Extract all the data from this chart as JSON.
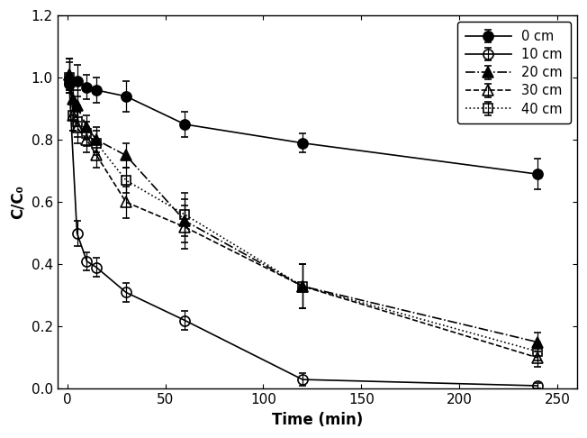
{
  "title": "",
  "xlabel": "Time (min)",
  "ylabel": "C/C₀",
  "xlim": [
    -5,
    260
  ],
  "ylim": [
    0,
    1.2
  ],
  "xticks": [
    0,
    50,
    100,
    150,
    200,
    250
  ],
  "yticks": [
    0.0,
    0.2,
    0.4,
    0.6,
    0.8,
    1.0,
    1.2
  ],
  "series": [
    {
      "label": "0 cm",
      "x": [
        1,
        5,
        10,
        15,
        30,
        60,
        120,
        240
      ],
      "y": [
        0.98,
        0.99,
        0.97,
        0.96,
        0.94,
        0.85,
        0.79,
        0.69
      ],
      "yerr": [
        0.03,
        0.05,
        0.04,
        0.04,
        0.05,
        0.04,
        0.03,
        0.05
      ],
      "color": "black",
      "marker": "o",
      "fillstyle": "full",
      "linestyle": "-",
      "markersize": 8,
      "linewidth": 1.2
    },
    {
      "label": "10 cm",
      "x": [
        1,
        5,
        10,
        15,
        30,
        60,
        120,
        240
      ],
      "y": [
        0.98,
        0.5,
        0.41,
        0.39,
        0.31,
        0.22,
        0.03,
        0.01
      ],
      "yerr": [
        0.03,
        0.04,
        0.03,
        0.03,
        0.03,
        0.03,
        0.02,
        0.01
      ],
      "color": "black",
      "marker": "o",
      "fillstyle": "none",
      "linestyle": "-",
      "markersize": 8,
      "linewidth": 1.2
    },
    {
      "label": "20 cm",
      "x": [
        1,
        3,
        5,
        10,
        15,
        30,
        60,
        120,
        240
      ],
      "y": [
        1.01,
        0.93,
        0.91,
        0.84,
        0.8,
        0.75,
        0.54,
        0.33,
        0.15
      ],
      "yerr": [
        0.05,
        0.05,
        0.05,
        0.04,
        0.04,
        0.04,
        0.07,
        0.07,
        0.03
      ],
      "color": "black",
      "marker": "^",
      "fillstyle": "full",
      "linestyle": "-.",
      "markersize": 8,
      "linewidth": 1.2
    },
    {
      "label": "30 cm",
      "x": [
        1,
        3,
        5,
        10,
        15,
        30,
        60,
        120,
        240
      ],
      "y": [
        1.01,
        0.88,
        0.84,
        0.8,
        0.75,
        0.6,
        0.52,
        0.33,
        0.1
      ],
      "yerr": [
        0.05,
        0.05,
        0.05,
        0.04,
        0.04,
        0.05,
        0.07,
        0.07,
        0.03
      ],
      "color": "black",
      "marker": "^",
      "fillstyle": "none",
      "linestyle": "--",
      "markersize": 8,
      "linewidth": 1.2
    },
    {
      "label": "40 cm",
      "x": [
        1,
        3,
        5,
        10,
        15,
        30,
        60,
        120,
        240
      ],
      "y": [
        1.0,
        0.88,
        0.86,
        0.82,
        0.79,
        0.67,
        0.56,
        0.33,
        0.12
      ],
      "yerr": [
        0.05,
        0.05,
        0.05,
        0.04,
        0.04,
        0.04,
        0.07,
        0.07,
        0.03
      ],
      "color": "black",
      "marker": "s",
      "fillstyle": "none",
      "linestyle": ":",
      "markersize": 7,
      "linewidth": 1.2
    }
  ],
  "legend_loc": "upper right",
  "figsize": [
    6.52,
    4.86
  ],
  "dpi": 100
}
